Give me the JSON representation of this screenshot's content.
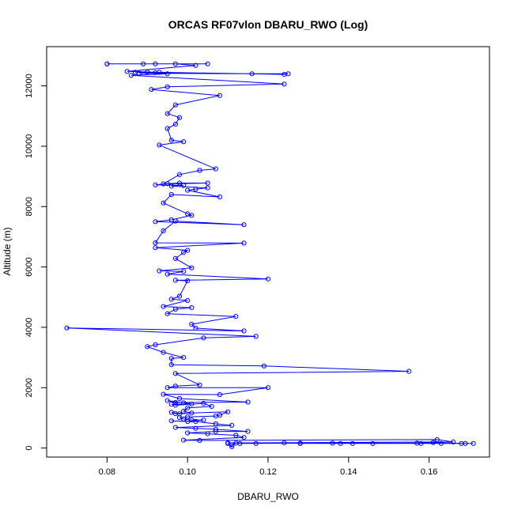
{
  "chart_data": {
    "type": "scatter",
    "title": "ORCAS RF07vlon DBARU_RWO (Log)",
    "xlabel": "DBARU_RWO",
    "ylabel": "Altitude (m)",
    "xlim": [
      0.065,
      0.175
    ],
    "ylim": [
      -300,
      13300
    ],
    "xticks": [
      0.08,
      0.1,
      0.12,
      0.14,
      0.16
    ],
    "xtick_labels": [
      "0.08",
      "0.10",
      "0.12",
      "0.14",
      "0.16"
    ],
    "yticks": [
      0,
      2000,
      4000,
      6000,
      8000,
      10000,
      12000
    ],
    "ytick_labels": [
      "0",
      "2000",
      "4000",
      "6000",
      "8000",
      "10000",
      "12000"
    ],
    "grid": false,
    "series": [
      {
        "color": "#0000ff",
        "marker": "open-circle",
        "connected": true,
        "points": [
          [
            0.08,
            12730
          ],
          [
            0.092,
            12730
          ],
          [
            0.105,
            12730
          ],
          [
            0.089,
            12730
          ],
          [
            0.08,
            12730
          ],
          [
            0.097,
            12730
          ],
          [
            0.102,
            12680
          ],
          [
            0.085,
            12480
          ],
          [
            0.093,
            12450
          ],
          [
            0.124,
            12380
          ],
          [
            0.125,
            12400
          ],
          [
            0.088,
            12420
          ],
          [
            0.116,
            12400
          ],
          [
            0.087,
            12450
          ],
          [
            0.09,
            12460
          ],
          [
            0.092,
            12440
          ],
          [
            0.095,
            12400
          ],
          [
            0.086,
            12350
          ],
          [
            0.124,
            12060
          ],
          [
            0.095,
            11970
          ],
          [
            0.091,
            11880
          ],
          [
            0.108,
            11680
          ],
          [
            0.097,
            11370
          ],
          [
            0.095,
            11080
          ],
          [
            0.098,
            10950
          ],
          [
            0.097,
            10730
          ],
          [
            0.095,
            10590
          ],
          [
            0.096,
            10200
          ],
          [
            0.099,
            10150
          ],
          [
            0.093,
            10040
          ],
          [
            0.107,
            9250
          ],
          [
            0.103,
            9200
          ],
          [
            0.098,
            9060
          ],
          [
            0.094,
            8750
          ],
          [
            0.105,
            8780
          ],
          [
            0.098,
            8780
          ],
          [
            0.095,
            8760
          ],
          [
            0.092,
            8720
          ],
          [
            0.099,
            8700
          ],
          [
            0.096,
            8680
          ],
          [
            0.105,
            8620
          ],
          [
            0.102,
            8580
          ],
          [
            0.1,
            8540
          ],
          [
            0.108,
            8320
          ],
          [
            0.096,
            8400
          ],
          [
            0.094,
            8120
          ],
          [
            0.1,
            7760
          ],
          [
            0.101,
            7710
          ],
          [
            0.096,
            7560
          ],
          [
            0.092,
            7500
          ],
          [
            0.114,
            7400
          ],
          [
            0.097,
            7520
          ],
          [
            0.094,
            7200
          ],
          [
            0.092,
            6800
          ],
          [
            0.114,
            6790
          ],
          [
            0.092,
            6640
          ],
          [
            0.1,
            6550
          ],
          [
            0.099,
            6480
          ],
          [
            0.097,
            6280
          ],
          [
            0.101,
            5970
          ],
          [
            0.093,
            5870
          ],
          [
            0.099,
            5850
          ],
          [
            0.095,
            5760
          ],
          [
            0.12,
            5600
          ],
          [
            0.097,
            5560
          ],
          [
            0.1,
            5540
          ],
          [
            0.098,
            5030
          ],
          [
            0.096,
            4930
          ],
          [
            0.1,
            4890
          ],
          [
            0.094,
            4690
          ],
          [
            0.101,
            4650
          ],
          [
            0.097,
            4600
          ],
          [
            0.095,
            4450
          ],
          [
            0.112,
            4360
          ],
          [
            0.101,
            4100
          ],
          [
            0.102,
            3970
          ],
          [
            0.114,
            3880
          ],
          [
            0.07,
            3980
          ],
          [
            0.117,
            3700
          ],
          [
            0.104,
            3650
          ],
          [
            0.092,
            3420
          ],
          [
            0.09,
            3360
          ],
          [
            0.094,
            3170
          ],
          [
            0.099,
            3000
          ],
          [
            0.096,
            2970
          ],
          [
            0.096,
            2760
          ],
          [
            0.119,
            2720
          ],
          [
            0.155,
            2540
          ],
          [
            0.097,
            2470
          ],
          [
            0.103,
            2090
          ],
          [
            0.097,
            2050
          ],
          [
            0.095,
            2000
          ],
          [
            0.12,
            2000
          ],
          [
            0.108,
            1770
          ],
          [
            0.094,
            1780
          ],
          [
            0.098,
            1640
          ],
          [
            0.115,
            1520
          ],
          [
            0.097,
            1510
          ],
          [
            0.095,
            1570
          ],
          [
            0.099,
            1500
          ],
          [
            0.101,
            1460
          ],
          [
            0.096,
            1450
          ],
          [
            0.097,
            1420
          ],
          [
            0.104,
            1480
          ],
          [
            0.106,
            1380
          ],
          [
            0.1,
            1330
          ],
          [
            0.099,
            1220
          ],
          [
            0.101,
            1160
          ],
          [
            0.098,
            1130
          ],
          [
            0.096,
            1180
          ],
          [
            0.097,
            1140
          ],
          [
            0.11,
            1200
          ],
          [
            0.108,
            1090
          ],
          [
            0.107,
            1060
          ],
          [
            0.1,
            1030
          ],
          [
            0.098,
            1010
          ],
          [
            0.099,
            960
          ],
          [
            0.101,
            930
          ],
          [
            0.104,
            930
          ],
          [
            0.1,
            880
          ],
          [
            0.096,
            900
          ],
          [
            0.102,
            880
          ],
          [
            0.107,
            800
          ],
          [
            0.111,
            750
          ],
          [
            0.097,
            680
          ],
          [
            0.102,
            650
          ],
          [
            0.107,
            620
          ],
          [
            0.115,
            550
          ],
          [
            0.107,
            550
          ],
          [
            0.1,
            500
          ],
          [
            0.105,
            470
          ],
          [
            0.112,
            420
          ],
          [
            0.114,
            350
          ],
          [
            0.099,
            260
          ],
          [
            0.103,
            250
          ],
          [
            0.162,
            280
          ],
          [
            0.166,
            200
          ],
          [
            0.11,
            170
          ],
          [
            0.124,
            170
          ],
          [
            0.128,
            150
          ],
          [
            0.138,
            150
          ],
          [
            0.141,
            150
          ],
          [
            0.146,
            150
          ],
          [
            0.158,
            150
          ],
          [
            0.163,
            150
          ],
          [
            0.168,
            150
          ],
          [
            0.171,
            150
          ],
          [
            0.169,
            150
          ],
          [
            0.161,
            180
          ],
          [
            0.157,
            160
          ],
          [
            0.136,
            160
          ],
          [
            0.128,
            160
          ],
          [
            0.117,
            150
          ],
          [
            0.113,
            150
          ],
          [
            0.112,
            160
          ],
          [
            0.111,
            100
          ],
          [
            0.111,
            40
          ],
          [
            0.11,
            150
          ]
        ]
      }
    ]
  }
}
